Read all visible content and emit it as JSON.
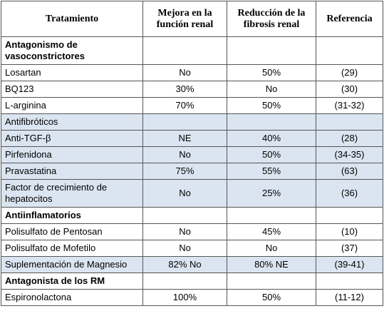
{
  "table": {
    "header": [
      "Tratamiento",
      "Mejora en la función renal",
      "Reducción de la fibrosis renal",
      "Referencia"
    ],
    "rows": [
      {
        "cells": [
          "Antagonismo de vasoconstrictores"
        ],
        "bold": true
      },
      {
        "cells": [
          "Losartan",
          "No",
          "50%",
          "(29)"
        ]
      },
      {
        "cells": [
          "BQ123",
          "30%",
          "No",
          "(30)"
        ]
      },
      {
        "cells": [
          "L-arginina",
          "70%",
          "50%",
          "(31-32)"
        ]
      },
      {
        "cells": [
          "Antifibróticos"
        ],
        "shaded": true
      },
      {
        "cells": [
          "Anti-TGF-β",
          "NE",
          "40%",
          "(28)"
        ],
        "shaded": true
      },
      {
        "cells": [
          "Pirfenidona",
          "No",
          "50%",
          "(34-35)"
        ],
        "shaded": true
      },
      {
        "cells": [
          "Pravastatina",
          "75%",
          "55%",
          "(63)"
        ],
        "shaded": true
      },
      {
        "cells": [
          "Factor de crecimiento de hepatocitos",
          "No",
          "25%",
          "(36)"
        ],
        "shaded": true
      },
      {
        "cells": [
          "Antiinflamatorios"
        ],
        "bold": true
      },
      {
        "cells": [
          "Polisulfato de Pentosan",
          "No",
          "45%",
          "(10)"
        ]
      },
      {
        "cells": [
          "Polisulfato de Mofetilo",
          "No",
          "No",
          "(37)"
        ]
      },
      {
        "cells": [
          "Suplementación de Magnesio",
          "82% No",
          "80% NE",
          "(39-41)"
        ],
        "shaded": true
      },
      {
        "cells": [
          "Antagonista de los RM"
        ],
        "bold": true
      },
      {
        "cells": [
          "Espironolactona",
          "100%",
          "50%",
          "(11-12)"
        ]
      }
    ]
  }
}
